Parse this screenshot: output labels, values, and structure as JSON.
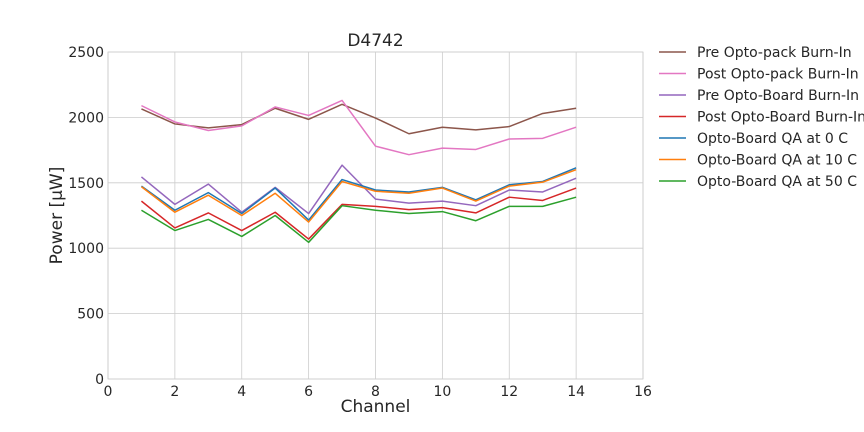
{
  "chart_data": {
    "type": "line",
    "title": "D4742",
    "xlabel": "Channel",
    "ylabel": "Power [μW]",
    "xlim": [
      0,
      16
    ],
    "ylim": [
      0,
      2500
    ],
    "xticks": [
      0,
      2,
      4,
      6,
      8,
      10,
      12,
      14,
      16
    ],
    "yticks": [
      0,
      500,
      1000,
      1500,
      2000,
      2500
    ],
    "grid": true,
    "legend_position": "outside-right",
    "x": [
      1,
      2,
      3,
      4,
      5,
      6,
      7,
      8,
      9,
      10,
      11,
      12,
      13,
      14
    ],
    "series": [
      {
        "name": "Pre Opto-pack Burn-In",
        "color": "#8c564b",
        "values": [
          2065,
          1950,
          1920,
          1945,
          2070,
          1985,
          2100,
          1995,
          1875,
          1925,
          1905,
          1930,
          2030,
          2070
        ]
      },
      {
        "name": "Post Opto-pack Burn-In",
        "color": "#e377c2",
        "values": [
          2090,
          1965,
          1900,
          1935,
          2080,
          2015,
          2130,
          1780,
          1715,
          1765,
          1755,
          1835,
          1840,
          1925
        ]
      },
      {
        "name": "Pre Opto-Board Burn-In",
        "color": "#9467bd",
        "values": [
          1545,
          1335,
          1490,
          1275,
          1465,
          1265,
          1635,
          1375,
          1345,
          1360,
          1325,
          1445,
          1430,
          1535
        ]
      },
      {
        "name": "Post Opto-Board Burn-In",
        "color": "#d62728",
        "values": [
          1360,
          1155,
          1270,
          1135,
          1275,
          1070,
          1335,
          1320,
          1295,
          1310,
          1270,
          1390,
          1365,
          1460
        ]
      },
      {
        "name": "Opto-Board QA at 0 C",
        "color": "#1f77b4",
        "values": [
          1475,
          1290,
          1425,
          1265,
          1460,
          1215,
          1525,
          1445,
          1430,
          1465,
          1370,
          1485,
          1510,
          1615
        ]
      },
      {
        "name": "Opto-Board QA at 10 C",
        "color": "#ff7f0e",
        "values": [
          1470,
          1275,
          1405,
          1250,
          1420,
          1200,
          1510,
          1435,
          1420,
          1460,
          1360,
          1475,
          1505,
          1600
        ]
      },
      {
        "name": "Opto-Board QA at 50 C",
        "color": "#2ca02c",
        "values": [
          1290,
          1135,
          1220,
          1090,
          1250,
          1045,
          1325,
          1290,
          1265,
          1280,
          1210,
          1320,
          1320,
          1390
        ]
      }
    ]
  }
}
